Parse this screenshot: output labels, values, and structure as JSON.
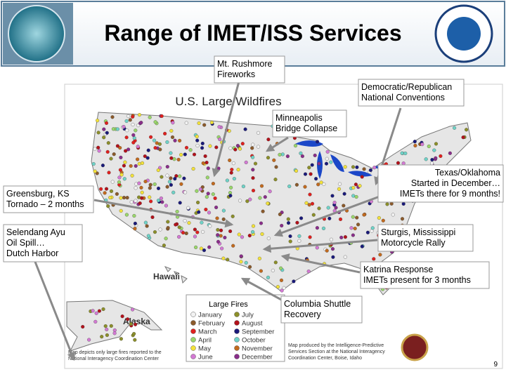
{
  "header": {
    "title": "Range of IMET/ISS Services"
  },
  "map": {
    "title": "U.S. Large Wildfires",
    "hawaii": "Hawaii",
    "alaska": "Alaska",
    "legend": {
      "title": "Large Fires",
      "months": [
        "January",
        "February",
        "March",
        "April",
        "May",
        "June",
        "July",
        "August",
        "September",
        "October",
        "November",
        "December"
      ]
    },
    "note_left": [
      "Map depicts only large fires reported to the",
      "National Interagency Coordination Center"
    ],
    "note_right": [
      "Map produced by the Intelligence-Predictive",
      "Services Section at the National Interagency",
      "Coordination Center, Boise, Idaho"
    ]
  },
  "callouts": [
    {
      "lines": [
        "Mt. Rushmore",
        "Fireworks"
      ]
    },
    {
      "lines": [
        "Democratic/Republican",
        "National Conventions"
      ]
    },
    {
      "lines": [
        "Minneapolis",
        "Bridge Collapse"
      ]
    },
    {
      "lines": [
        "Texas/Oklahoma",
        "Started in December…",
        "IMETs there for 9 months!"
      ]
    },
    {
      "lines": [
        "Greensburg, KS",
        "Tornado – 2 months"
      ]
    },
    {
      "lines": [
        "Selendang Ayu",
        "Oil Spill…",
        "Dutch Harbor"
      ]
    },
    {
      "lines": [
        "Sturgis, Mississippi",
        "Motorcycle Rally"
      ]
    },
    {
      "lines": [
        "Katrina Response",
        "IMETs present for 3 months"
      ]
    },
    {
      "lines": [
        "Columbia Shuttle",
        "Recovery"
      ]
    }
  ],
  "page_number": "9"
}
